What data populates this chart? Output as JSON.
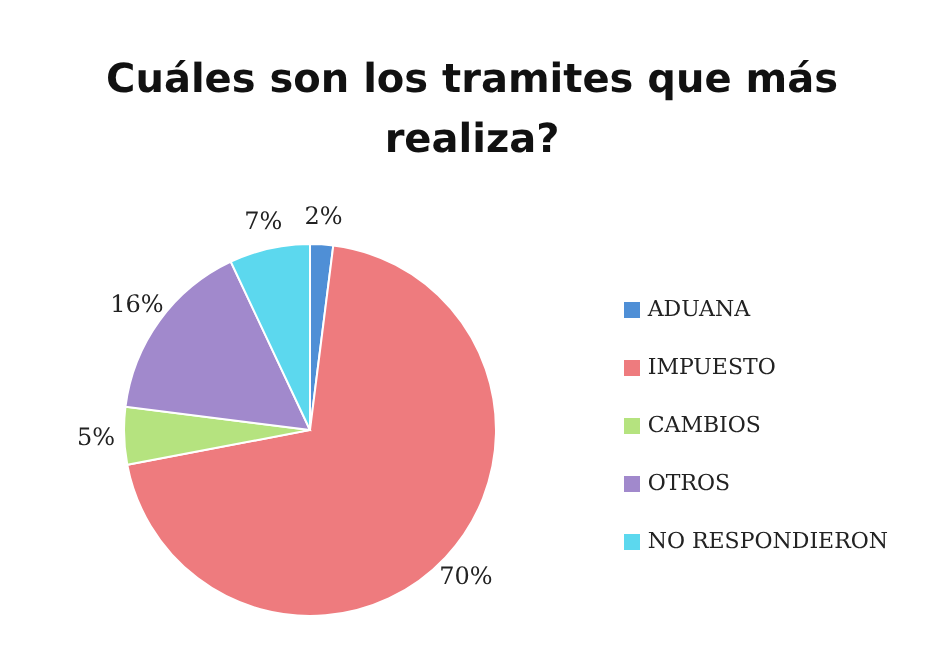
{
  "chart_data": {
    "type": "pie",
    "title": "Cuáles son los tramites que más realiza?",
    "categories": [
      "ADUANA",
      "IMPUESTO",
      "CAMBIOS",
      "OTROS",
      "NO RESPONDIERON"
    ],
    "values": [
      2,
      70,
      5,
      16,
      7
    ],
    "colors": [
      "#4f8fd6",
      "#ee7b7e",
      "#b5e37f",
      "#a189cc",
      "#5cd8ee"
    ],
    "value_labels": [
      "2%",
      "70%",
      "5%",
      "16%",
      "7%"
    ],
    "legend": "right"
  }
}
